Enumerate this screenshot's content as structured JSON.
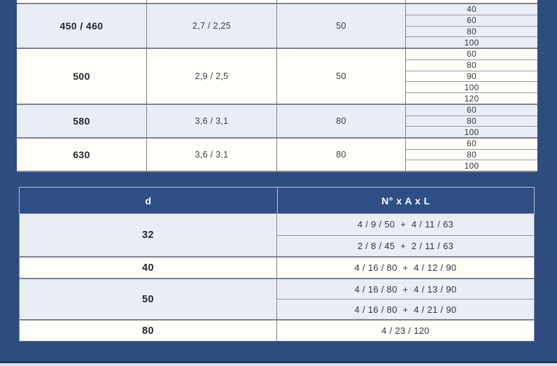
{
  "colors": {
    "page_background": "#2e4c80",
    "shaded_row": "#e9edf6",
    "plain_row": "#fffdf8",
    "table_border_gray": "#7d838d",
    "header_background": "#2f4e85",
    "header_outline": "#b4c2dc",
    "footer_line": "#1e3767",
    "footer_strip": "#dce2ee"
  },
  "upper_table": {
    "row_groups": [
      {
        "col1": "450 / 460",
        "col2": "2,7 / 2,25",
        "col3": "50",
        "sub_rows": [
          "40",
          "60",
          "80",
          "100"
        ]
      },
      {
        "col1": "500",
        "col2": "2,9 / 2,5",
        "col3": "50",
        "sub_rows": [
          "60",
          "80",
          "90",
          "100",
          "120"
        ]
      },
      {
        "col1": "580",
        "col2": "3,6 / 3,1",
        "col3": "80",
        "sub_rows": [
          "60",
          "80",
          "100"
        ]
      },
      {
        "col1": "630",
        "col2": "3,6 / 3,1",
        "col3": "80",
        "sub_rows": [
          "60",
          "80",
          "100"
        ]
      }
    ]
  },
  "lower_table": {
    "headers": {
      "d": "d",
      "naxl": "N° x A x L"
    },
    "rows": [
      {
        "d": "32",
        "values": [
          "4 / 9 / 50  +  4 / 11 / 63",
          "2 / 8 / 45  +  2 / 11 / 63"
        ]
      },
      {
        "d": "40",
        "values": [
          "4 / 16 / 80  +  4 / 12 / 90"
        ]
      },
      {
        "d": "50",
        "values": [
          "4 / 16 / 80  +  4 / 13 / 90",
          "4 / 16 / 80  +  4 / 21 / 90"
        ]
      },
      {
        "d": "80",
        "values": [
          "4 / 23 / 120"
        ]
      }
    ]
  }
}
